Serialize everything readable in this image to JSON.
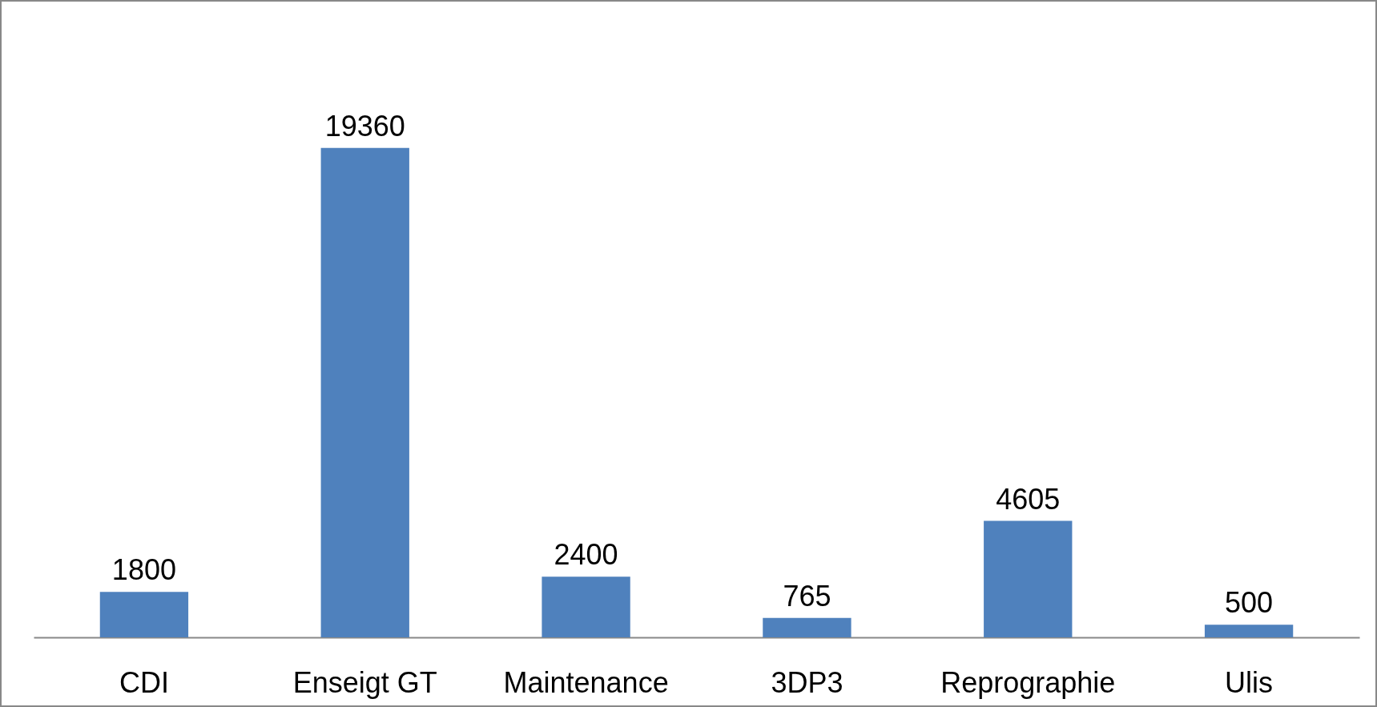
{
  "chart_data": {
    "type": "bar",
    "categories": [
      "CDI",
      "Enseigt GT",
      "Maintenance",
      "3DP3",
      "Reprographie",
      "Ulis"
    ],
    "values": [
      1800,
      19360,
      2400,
      765,
      4605,
      500
    ],
    "color": "#4f81bd",
    "data_labels": true,
    "grid": false,
    "tick_labels": "x"
  }
}
